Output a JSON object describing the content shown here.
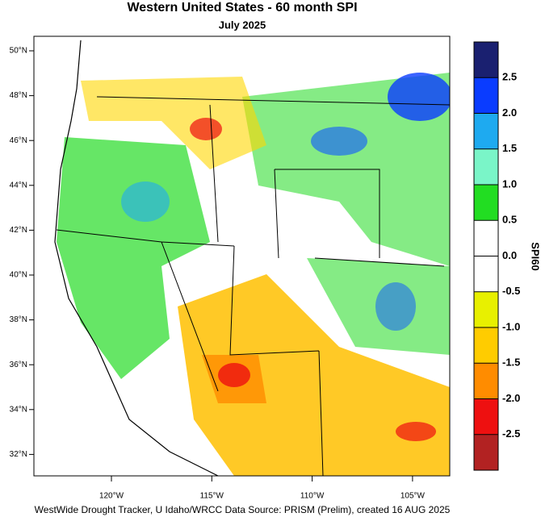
{
  "map": {
    "title": "Western United States - 60 month SPI",
    "subtitle": "July 2025",
    "lat_labels": [
      "50°N",
      "48°N",
      "46°N",
      "44°N",
      "42°N",
      "40°N",
      "38°N",
      "36°N",
      "34°N",
      "32°N"
    ],
    "lon_labels": [
      "120°W",
      "115°W",
      "110°W",
      "105°W"
    ],
    "colorbar": {
      "label": "SPI60",
      "lim": [
        -3,
        3
      ],
      "ticks": [
        {
          "value": 2.5,
          "label": "2.5"
        },
        {
          "value": 2,
          "label": "2.0"
        },
        {
          "value": 1.5,
          "label": "1.5"
        },
        {
          "value": 1,
          "label": "1.0"
        },
        {
          "value": 0.5,
          "label": "0.5"
        },
        {
          "value": 0,
          "label": "0.0"
        },
        {
          "value": -0.5,
          "label": "-0.5"
        },
        {
          "value": -1,
          "label": "-1.0"
        },
        {
          "value": -1.5,
          "label": "-1.5"
        },
        {
          "value": -2,
          "label": "-2.0"
        },
        {
          "value": -2.5,
          "label": "-2.5"
        }
      ],
      "colors": [
        "#1a2070",
        "#0a3cff",
        "#1eaaf0",
        "#7af5c8",
        "#22dd22",
        "#ffffff",
        "#ffffff",
        "#e8f000",
        "#ffcc00",
        "#ff8c00",
        "#ee1010",
        "#b22222"
      ]
    },
    "footer": "WestWide Drought Tracker, U Idaho/WRCC Data Source: PRISM (Prelim), created 16 AUG 2025"
  }
}
